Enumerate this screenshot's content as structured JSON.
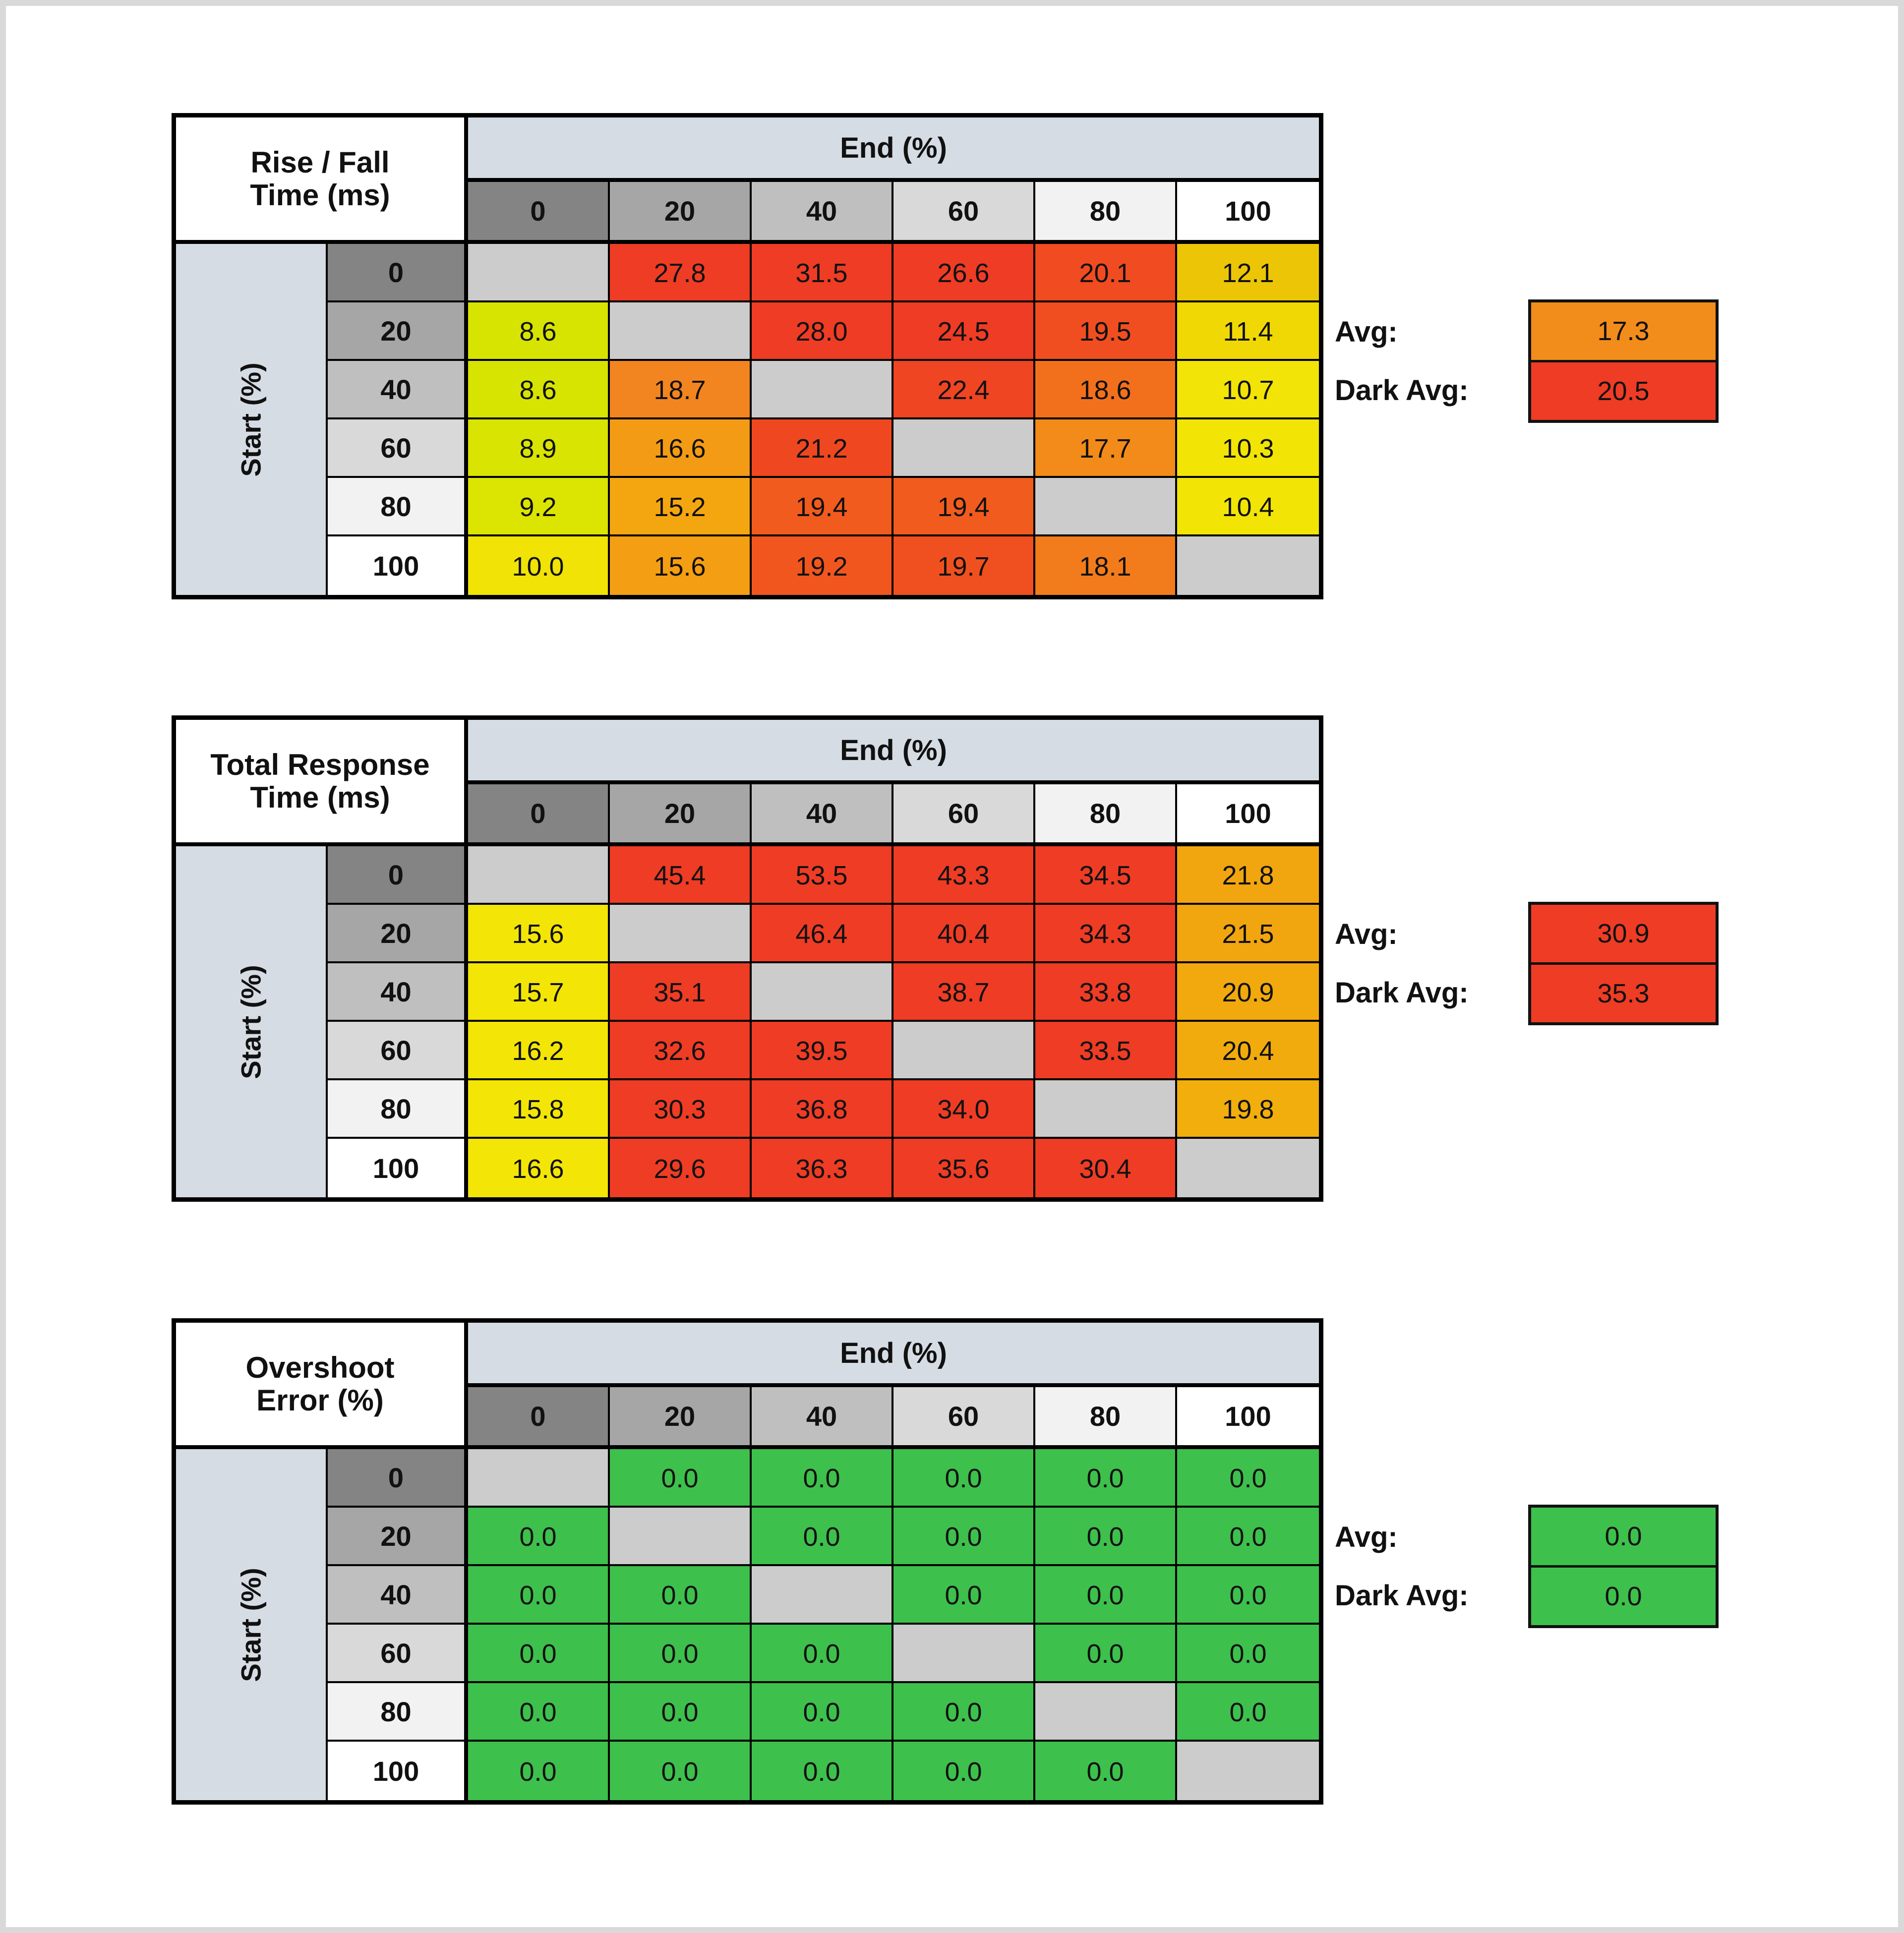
{
  "shared": {
    "end_axis_label": "End (%)",
    "start_axis_label": "Start (%)",
    "col_headers": [
      "0",
      "20",
      "40",
      "60",
      "80",
      "100"
    ],
    "row_headers": [
      "0",
      "20",
      "40",
      "60",
      "80",
      "100"
    ],
    "header_shades": [
      "#848484",
      "#a6a6a6",
      "#bfbfbf",
      "#d9d9d9",
      "#f2f2f2",
      "#ffffff"
    ],
    "band_color": "#d6dce4",
    "diagonal_color": "#cccccc",
    "avg_label": "Avg:",
    "dark_avg_label": "Dark Avg:",
    "frame_color": "#d9d9d9",
    "border_color": "#000000"
  },
  "chart_data": [
    {
      "type": "heatmap",
      "id": "rise-fall-time",
      "title_line1": "Rise / Fall",
      "title_line2": "Time (ms)",
      "x_axis_label": "End (%)",
      "y_axis_label": "Start (%)",
      "x_labels": [
        "0",
        "20",
        "40",
        "60",
        "80",
        "100"
      ],
      "y_labels": [
        "0",
        "20",
        "40",
        "60",
        "80",
        "100"
      ],
      "values": [
        [
          null,
          27.8,
          31.5,
          26.6,
          20.1,
          12.1
        ],
        [
          8.6,
          null,
          28.0,
          24.5,
          19.5,
          11.4
        ],
        [
          8.6,
          18.7,
          null,
          22.4,
          18.6,
          10.7
        ],
        [
          8.9,
          16.6,
          21.2,
          null,
          17.7,
          10.3
        ],
        [
          9.2,
          15.2,
          19.4,
          19.4,
          null,
          10.4
        ],
        [
          10.0,
          15.6,
          19.2,
          19.7,
          18.1,
          null
        ]
      ],
      "cell_colors": [
        [
          null,
          "#ee3c25",
          "#ee3c25",
          "#ee3c25",
          "#f04b21",
          "#ecc606"
        ],
        [
          "#d7e402",
          null,
          "#ee3c25",
          "#ee3c25",
          "#f04e21",
          "#f0d805"
        ],
        [
          "#d7e402",
          "#f28520",
          null,
          "#ef4522",
          "#f2701c",
          "#f2e406"
        ],
        [
          "#d9e402",
          "#f49b15",
          "#ef4821",
          null,
          "#f28b19",
          "#f2e506"
        ],
        [
          "#dce402",
          "#f4a611",
          "#f15b1e",
          "#f15b1e",
          null,
          "#f2e506"
        ],
        [
          "#f0e305",
          "#f49e13",
          "#f1561f",
          "#f0501f",
          "#f27b1b",
          null
        ]
      ],
      "avg": {
        "value": 17.3,
        "color": "#f28c1b"
      },
      "dark_avg": {
        "value": 20.5,
        "color": "#ee3c25"
      }
    },
    {
      "type": "heatmap",
      "id": "total-response-time",
      "title_line1": "Total Response",
      "title_line2": "Time (ms)",
      "x_axis_label": "End (%)",
      "y_axis_label": "Start (%)",
      "x_labels": [
        "0",
        "20",
        "40",
        "60",
        "80",
        "100"
      ],
      "y_labels": [
        "0",
        "20",
        "40",
        "60",
        "80",
        "100"
      ],
      "values": [
        [
          null,
          45.4,
          53.5,
          43.3,
          34.5,
          21.8
        ],
        [
          15.6,
          null,
          46.4,
          40.4,
          34.3,
          21.5
        ],
        [
          15.7,
          35.1,
          null,
          38.7,
          33.8,
          20.9
        ],
        [
          16.2,
          32.6,
          39.5,
          null,
          33.5,
          20.4
        ],
        [
          15.8,
          30.3,
          36.8,
          34.0,
          null,
          19.8
        ],
        [
          16.6,
          29.6,
          36.3,
          35.6,
          30.4,
          null
        ]
      ],
      "cell_colors": [
        [
          null,
          "#ee3c25",
          "#ee3c25",
          "#ee3c25",
          "#ee3c25",
          "#f1a60f"
        ],
        [
          "#f3e506",
          null,
          "#ee3c25",
          "#ee3c25",
          "#ee3c25",
          "#f1a60f"
        ],
        [
          "#f3e506",
          "#ee3c25",
          null,
          "#ee3c25",
          "#ee3c25",
          "#f1a90e"
        ],
        [
          "#f3e506",
          "#ee3c25",
          "#ee3c25",
          null,
          "#ee3c25",
          "#f1ab0d"
        ],
        [
          "#f3e506",
          "#ee3c25",
          "#ee3c25",
          "#ee3c25",
          null,
          "#f1ae0c"
        ],
        [
          "#f3e506",
          "#ee3c25",
          "#ee3c25",
          "#ee3c25",
          "#ee3c25",
          null
        ]
      ],
      "avg": {
        "value": 30.9,
        "color": "#ee3c25"
      },
      "dark_avg": {
        "value": 35.3,
        "color": "#ee3c25"
      }
    },
    {
      "type": "heatmap",
      "id": "overshoot-error",
      "title_line1": "Overshoot",
      "title_line2": "Error (%)",
      "x_axis_label": "End (%)",
      "y_axis_label": "Start (%)",
      "x_labels": [
        "0",
        "20",
        "40",
        "60",
        "80",
        "100"
      ],
      "y_labels": [
        "0",
        "20",
        "40",
        "60",
        "80",
        "100"
      ],
      "values": [
        [
          null,
          0.0,
          0.0,
          0.0,
          0.0,
          0.0
        ],
        [
          0.0,
          null,
          0.0,
          0.0,
          0.0,
          0.0
        ],
        [
          0.0,
          0.0,
          null,
          0.0,
          0.0,
          0.0
        ],
        [
          0.0,
          0.0,
          0.0,
          null,
          0.0,
          0.0
        ],
        [
          0.0,
          0.0,
          0.0,
          0.0,
          null,
          0.0
        ],
        [
          0.0,
          0.0,
          0.0,
          0.0,
          0.0,
          null
        ]
      ],
      "cell_colors": [
        [
          null,
          "#3ec04c",
          "#3ec04c",
          "#3ec04c",
          "#3ec04c",
          "#3ec04c"
        ],
        [
          "#3ec04c",
          null,
          "#3ec04c",
          "#3ec04c",
          "#3ec04c",
          "#3ec04c"
        ],
        [
          "#3ec04c",
          "#3ec04c",
          null,
          "#3ec04c",
          "#3ec04c",
          "#3ec04c"
        ],
        [
          "#3ec04c",
          "#3ec04c",
          "#3ec04c",
          null,
          "#3ec04c",
          "#3ec04c"
        ],
        [
          "#3ec04c",
          "#3ec04c",
          "#3ec04c",
          "#3ec04c",
          null,
          "#3ec04c"
        ],
        [
          "#3ec04c",
          "#3ec04c",
          "#3ec04c",
          "#3ec04c",
          "#3ec04c",
          null
        ]
      ],
      "avg": {
        "value": 0.0,
        "color": "#3ec04c"
      },
      "dark_avg": {
        "value": 0.0,
        "color": "#3ec04c"
      }
    }
  ]
}
